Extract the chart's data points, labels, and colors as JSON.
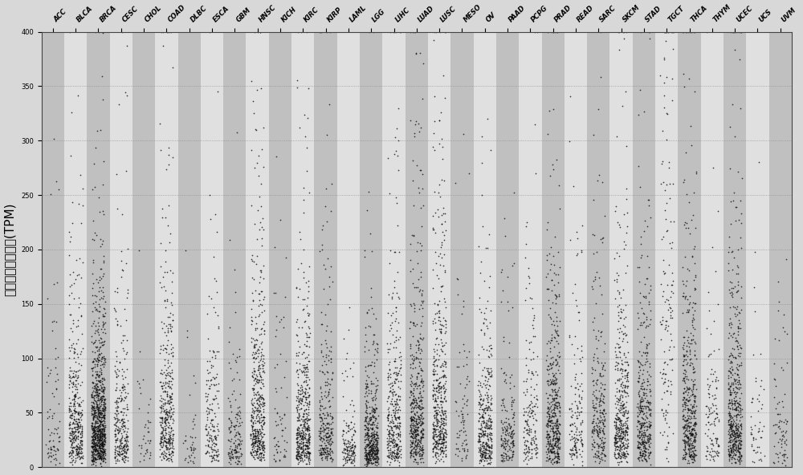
{
  "categories": [
    "ACC",
    "BLCA",
    "BRCA",
    "CESC",
    "CHOL",
    "COAD",
    "DLBC",
    "ESCA",
    "GBM",
    "HNSC",
    "KICH",
    "KIRC",
    "KIRP",
    "LAML",
    "LGG",
    "LIHC",
    "LUAD",
    "LUSC",
    "MESO",
    "OV",
    "PAAD",
    "PCPG",
    "PRAD",
    "READ",
    "SARC",
    "SKCM",
    "STAD",
    "TGCT",
    "THCA",
    "THYM",
    "UCEC",
    "UCS",
    "UVM"
  ],
  "ylabel": "每百万的转录产物(TPM)",
  "ylim": [
    0,
    400
  ],
  "yticks": [
    0,
    50,
    100,
    150,
    200,
    250,
    300,
    350,
    400
  ],
  "background_color": "#d8d8d8",
  "strip_color_odd": "#c0c0c0",
  "strip_color_even": "#e0e0e0",
  "dot_color": "#111111",
  "dot_size": 1.5,
  "n_samples_per_group": 150,
  "figwidth": 10.0,
  "figheight": 5.92,
  "tick_fontsize": 6,
  "ylabel_fontsize": 11,
  "label_rotation": 45
}
